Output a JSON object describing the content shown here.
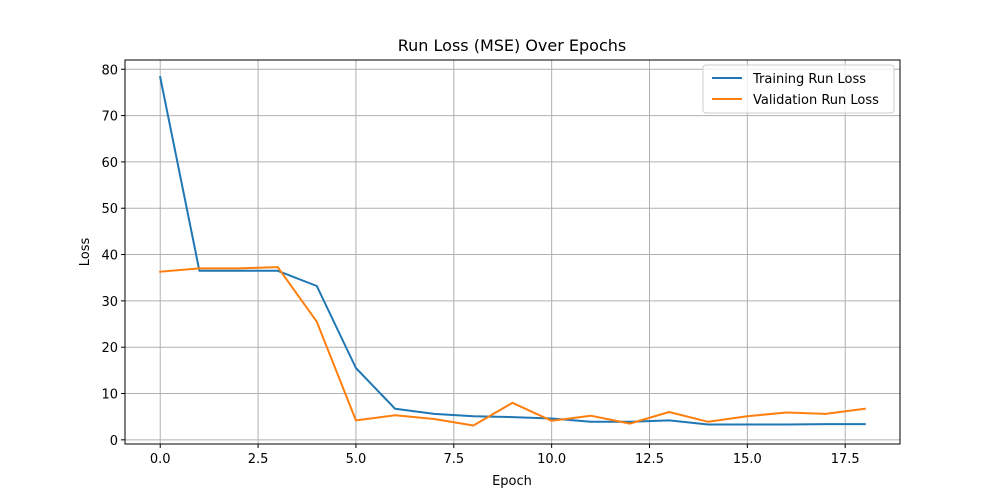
{
  "chart_data": {
    "type": "line",
    "title": "Run Loss (MSE) Over Epochs",
    "xlabel": "Epoch",
    "ylabel": "Loss",
    "xlim": [
      -0.9,
      18.9
    ],
    "ylim": [
      -0.9,
      82
    ],
    "x_ticks": [
      0.0,
      2.5,
      5.0,
      7.5,
      10.0,
      12.5,
      15.0,
      17.5
    ],
    "x_tick_labels": [
      "0.0",
      "2.5",
      "5.0",
      "7.5",
      "10.0",
      "12.5",
      "15.0",
      "17.5"
    ],
    "y_ticks": [
      0,
      10,
      20,
      30,
      40,
      50,
      60,
      70,
      80
    ],
    "y_tick_labels": [
      "0",
      "10",
      "20",
      "30",
      "40",
      "50",
      "60",
      "70",
      "80"
    ],
    "grid": true,
    "legend_position": "top-right",
    "x": [
      0,
      1,
      2,
      3,
      4,
      5,
      6,
      7,
      8,
      9,
      10,
      11,
      12,
      13,
      14,
      15,
      16,
      17,
      18
    ],
    "series": [
      {
        "name": "Training Run Loss",
        "color": "#1f77b4",
        "values": [
          78.3,
          36.5,
          36.5,
          36.5,
          33.2,
          15.5,
          6.7,
          5.6,
          5.1,
          4.9,
          4.6,
          3.9,
          3.9,
          4.2,
          3.3,
          3.3,
          3.3,
          3.4,
          3.4
        ]
      },
      {
        "name": "Validation Run Loss",
        "color": "#ff7f0e",
        "values": [
          36.3,
          37.0,
          37.0,
          37.3,
          25.5,
          4.2,
          5.3,
          4.5,
          3.1,
          8.0,
          4.1,
          5.2,
          3.5,
          6.0,
          3.9,
          5.1,
          5.9,
          5.6,
          6.7
        ]
      }
    ]
  }
}
